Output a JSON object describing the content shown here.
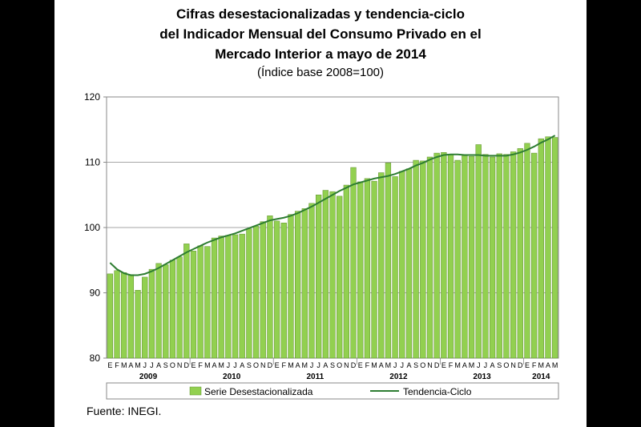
{
  "chart_data": {
    "type": "bar",
    "title": [
      "Cifras desestacionalizadas y tendencia-ciclo",
      "del Indicador Mensual del Consumo Privado en el",
      "Mercado Interior a mayo de 2014"
    ],
    "subtitle": "(Índice base 2008=100)",
    "month_labels": [
      "E",
      "F",
      "M",
      "A",
      "M",
      "J",
      "J",
      "A",
      "S",
      "O",
      "N",
      "D",
      "E",
      "F",
      "M",
      "A",
      "M",
      "J",
      "J",
      "A",
      "S",
      "O",
      "N",
      "D",
      "E",
      "F",
      "M",
      "A",
      "M",
      "J",
      "J",
      "A",
      "S",
      "O",
      "N",
      "D",
      "E",
      "F",
      "M",
      "A",
      "M",
      "J",
      "J",
      "A",
      "S",
      "O",
      "N",
      "D",
      "E",
      "F",
      "M",
      "A",
      "M",
      "J",
      "J",
      "A",
      "S",
      "O",
      "N",
      "D",
      "E",
      "F",
      "M",
      "A",
      "M"
    ],
    "year_labels": [
      {
        "label": "2009",
        "index": 5.5
      },
      {
        "label": "2010",
        "index": 17.5
      },
      {
        "label": "2011",
        "index": 29.5
      },
      {
        "label": "2012",
        "index": 41.5
      },
      {
        "label": "2013",
        "index": 53.5
      },
      {
        "label": "2014",
        "index": 62
      }
    ],
    "ylim": [
      80,
      120
    ],
    "yticks": [
      80,
      90,
      100,
      110,
      120
    ],
    "grid": true,
    "legend_position": "bottom",
    "series": [
      {
        "name": "Serie Desestacionalizada",
        "type": "bar",
        "color": "#92d050",
        "values": [
          92.9,
          93.4,
          93.1,
          92.8,
          90.4,
          92.4,
          93.6,
          94.5,
          94.3,
          95.0,
          95.5,
          97.5,
          96.4,
          97.2,
          97.1,
          98.4,
          98.7,
          98.8,
          98.9,
          99.0,
          99.8,
          100.2,
          100.9,
          101.8,
          101.0,
          100.7,
          102.0,
          102.5,
          102.9,
          103.7,
          105.0,
          105.7,
          105.5,
          104.8,
          106.5,
          109.2,
          107.0,
          107.5,
          107.1,
          108.4,
          109.9,
          107.8,
          108.6,
          109.0,
          110.3,
          110.2,
          110.8,
          111.4,
          111.5,
          111.2,
          110.3,
          111.0,
          110.9,
          112.7,
          111.2,
          110.8,
          111.3,
          111.2,
          111.6,
          112.1,
          112.9,
          111.4,
          113.6,
          113.9,
          113.8
        ]
      },
      {
        "name": "Tendencia-Ciclo",
        "type": "line",
        "color": "#2e7d32",
        "values": [
          94.6,
          93.6,
          93.0,
          92.7,
          92.7,
          92.9,
          93.3,
          93.8,
          94.4,
          95.0,
          95.6,
          96.2,
          96.7,
          97.2,
          97.7,
          98.1,
          98.5,
          98.8,
          99.1,
          99.5,
          99.9,
          100.3,
          100.7,
          101.1,
          101.3,
          101.5,
          101.8,
          102.2,
          102.7,
          103.2,
          103.8,
          104.4,
          105.0,
          105.6,
          106.1,
          106.6,
          106.9,
          107.2,
          107.5,
          107.7,
          107.9,
          108.2,
          108.6,
          109.0,
          109.5,
          109.9,
          110.4,
          110.8,
          111.1,
          111.2,
          111.2,
          111.1,
          111.1,
          111.1,
          111.0,
          111.0,
          111.0,
          111.0,
          111.2,
          111.5,
          111.9,
          112.4,
          113.0,
          113.5,
          114.1
        ]
      }
    ]
  },
  "source": "Fuente: INEGI."
}
